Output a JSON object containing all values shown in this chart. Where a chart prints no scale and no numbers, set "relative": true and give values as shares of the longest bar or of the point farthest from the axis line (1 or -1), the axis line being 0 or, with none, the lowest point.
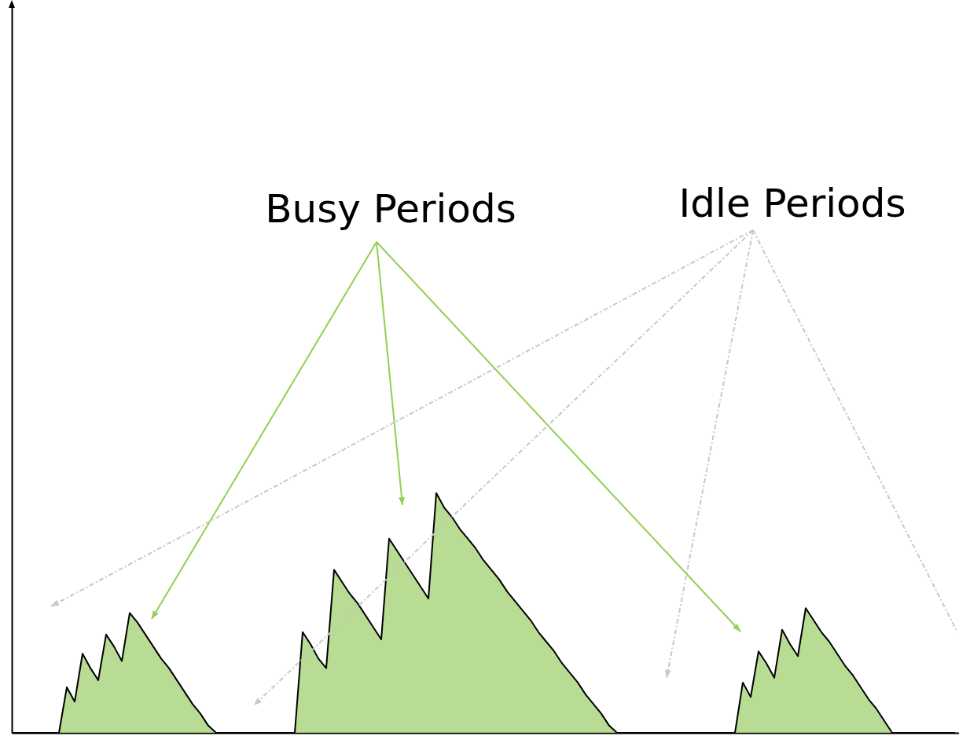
{
  "chart_data": {
    "type": "area",
    "relative": true,
    "color": "#9bcd68",
    "annotations": [
      "Busy Periods",
      "Idle Periods"
    ],
    "categories": [
      null,
      null,
      null,
      null,
      null,
      null,
      null,
      null,
      null,
      null,
      null,
      null,
      null,
      null,
      null,
      null,
      null,
      null,
      null,
      null,
      null,
      null,
      null,
      null,
      null,
      null,
      null,
      null,
      null,
      null,
      null,
      null,
      null,
      null,
      null,
      null,
      null,
      null,
      null,
      null,
      null,
      null,
      null,
      null,
      null,
      null,
      null,
      null,
      null,
      null,
      null,
      null,
      null,
      null,
      null,
      null,
      null,
      null,
      null,
      null,
      null,
      null,
      null,
      null,
      null,
      null,
      null,
      null,
      null,
      null,
      null,
      null,
      null,
      null,
      null,
      null,
      null,
      null,
      null,
      null,
      null,
      null,
      null,
      null,
      null,
      null,
      null,
      null,
      null,
      null,
      null,
      null,
      null,
      null,
      null,
      null,
      null,
      null,
      null,
      null,
      null,
      null,
      null,
      null,
      null,
      null,
      null,
      null,
      null,
      null,
      null,
      null,
      null,
      null,
      null,
      null,
      null,
      null,
      null,
      null,
      null
    ],
    "values": [
      0,
      0,
      0,
      0,
      0,
      0,
      0,
      0.19,
      0.13,
      0.33,
      0.27,
      0.22,
      0.41,
      0.36,
      0.3,
      0.5,
      0.46,
      0.41,
      0.36,
      0.31,
      0.27,
      0.22,
      0.17,
      0.12,
      0.08,
      0.03,
      0,
      0,
      0,
      0,
      0,
      0,
      0,
      0,
      0,
      0,
      0,
      0.42,
      0.37,
      0.31,
      0.27,
      0.68,
      0.63,
      0.58,
      0.54,
      0.49,
      0.44,
      0.39,
      0.81,
      0.76,
      0.71,
      0.66,
      0.61,
      0.56,
      1,
      0.94,
      0.9,
      0.85,
      0.81,
      0.77,
      0.72,
      0.68,
      0.64,
      0.59,
      0.55,
      0.51,
      0.47,
      0.42,
      0.38,
      0.34,
      0.29,
      0.25,
      0.21,
      0.16,
      0.12,
      0.08,
      0.03,
      0,
      0,
      0,
      0,
      0,
      0,
      0,
      0,
      0,
      0,
      0,
      0,
      0,
      0,
      0,
      0,
      0.21,
      0.15,
      0.34,
      0.29,
      0.23,
      0.43,
      0.37,
      0.32,
      0.52,
      0.47,
      0.42,
      0.38,
      0.33,
      0.28,
      0.24,
      0.19,
      0.14,
      0.1,
      0.05,
      0,
      0,
      0,
      0,
      0,
      0,
      0,
      0,
      0
    ]
  }
}
